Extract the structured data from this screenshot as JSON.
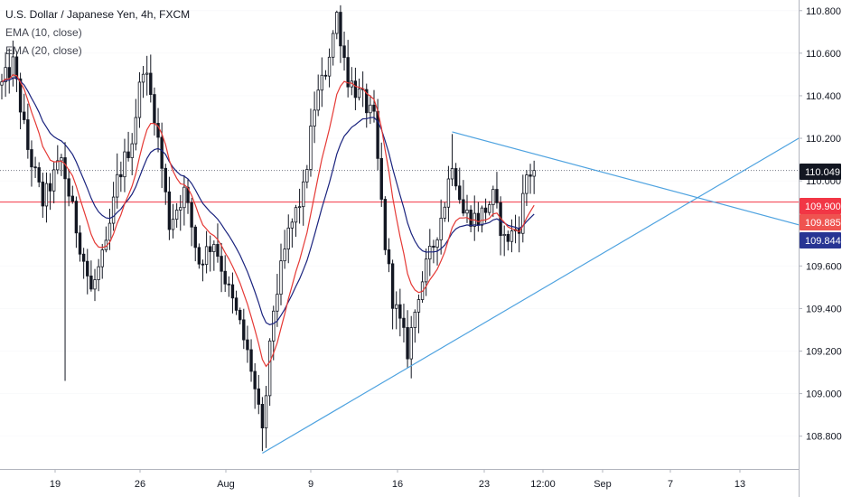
{
  "chart": {
    "title": "U.S. Dollar / Japanese Yen, 4h, FXCM",
    "indicators": [
      "EMA (10, close)",
      "EMA (20, close)"
    ]
  },
  "colors": {
    "candle": "#131722",
    "ema_fast": "#e53935",
    "ema_slow": "#1a237e",
    "trendline": "#4fa3e0",
    "horizontal_line": "#f23645",
    "dotted_line": "#787b86",
    "axis_text": "#131722",
    "grid": "#e0e3eb"
  },
  "chart_data": {
    "type": "candlestick",
    "symbol": "U.S. Dollar / Japanese Yen",
    "timeframe": "4h",
    "source": "FXCM",
    "ylim": [
      108.65,
      110.85
    ],
    "y_ticks": [
      "110.800",
      "110.600",
      "110.400",
      "110.200",
      "110.000",
      "109.600",
      "109.400",
      "109.200",
      "109.000",
      "108.800"
    ],
    "x_ticks": [
      "19",
      "26",
      "Aug",
      "9",
      "16",
      "23",
      "12:00",
      "Sep",
      "7",
      "13"
    ],
    "price_labels": [
      {
        "label": "110.049",
        "value": 110.049,
        "style": "last-price",
        "bg": "#131722",
        "fg": "#ffffff"
      },
      {
        "label": "109.900",
        "value": 109.9,
        "style": "horizontal-line",
        "bg": "#f23645",
        "fg": "#ffffff"
      },
      {
        "label": "109.885",
        "value": 109.885,
        "style": "ema-10",
        "bg": "#ef5350",
        "fg": "#ffffff"
      },
      {
        "label": "109.844",
        "value": 109.844,
        "style": "ema-20",
        "bg": "#283593",
        "fg": "#ffffff"
      }
    ],
    "horizontal_line": {
      "value": 109.9
    },
    "last_price_line": {
      "value": 110.049
    },
    "trendlines": [
      {
        "name": "upper",
        "from": {
          "bar": 121,
          "value": 110.23
        },
        "to": {
          "bar": 217,
          "value": 109.78
        }
      },
      {
        "name": "lower",
        "from": {
          "bar": 70,
          "value": 108.72
        },
        "to": {
          "bar": 217,
          "value": 110.23
        }
      }
    ],
    "ema_fast": {
      "label": "EMA (10, close)",
      "last": 109.885
    },
    "ema_slow": {
      "label": "EMA (20, close)",
      "last": 109.844
    },
    "anchors": [
      [
        0,
        110.45
      ],
      [
        3,
        110.55
      ],
      [
        7,
        110.15
      ],
      [
        11,
        109.9
      ],
      [
        16,
        110.1
      ],
      [
        20,
        109.78
      ],
      [
        24,
        109.48
      ],
      [
        28,
        109.68
      ],
      [
        31,
        110.0
      ],
      [
        35,
        110.2
      ],
      [
        38,
        110.55
      ],
      [
        41,
        110.32
      ],
      [
        45,
        109.8
      ],
      [
        49,
        109.95
      ],
      [
        53,
        109.62
      ],
      [
        57,
        109.72
      ],
      [
        61,
        109.48
      ],
      [
        64,
        109.32
      ],
      [
        67,
        109.12
      ],
      [
        70,
        108.8
      ],
      [
        73,
        109.4
      ],
      [
        77,
        109.75
      ],
      [
        81,
        109.95
      ],
      [
        84,
        110.35
      ],
      [
        87,
        110.52
      ],
      [
        90,
        110.78
      ],
      [
        93,
        110.48
      ],
      [
        97,
        110.38
      ],
      [
        100,
        110.28
      ],
      [
        103,
        109.7
      ],
      [
        105,
        109.45
      ],
      [
        109,
        109.2
      ],
      [
        112,
        109.48
      ],
      [
        116,
        109.7
      ],
      [
        119,
        109.9
      ],
      [
        121,
        110.1
      ],
      [
        124,
        109.85
      ],
      [
        128,
        109.82
      ],
      [
        132,
        109.92
      ],
      [
        135,
        109.72
      ],
      [
        137,
        109.75
      ],
      [
        139,
        109.8
      ],
      [
        141,
        110.03
      ],
      [
        143,
        110.05
      ]
    ],
    "trend_bar_end": 217,
    "first_candle_bar": 0,
    "last_candle_bar": 143
  }
}
